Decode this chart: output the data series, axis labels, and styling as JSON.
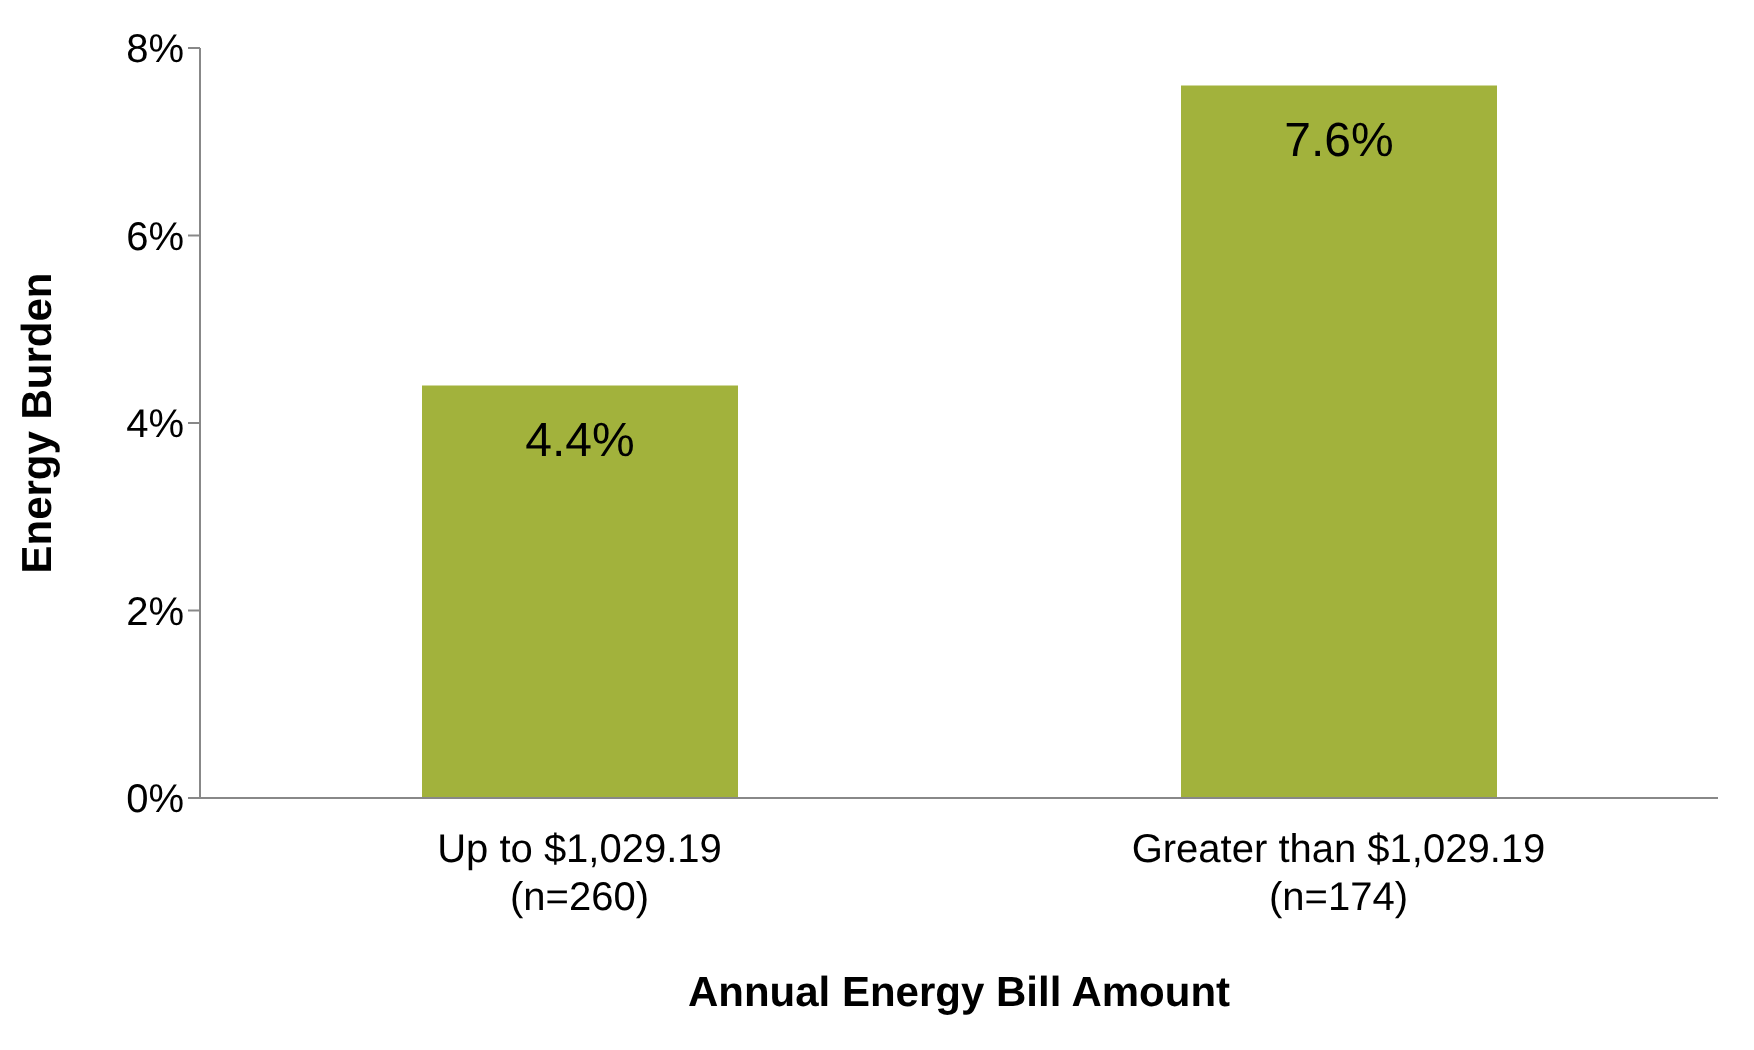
{
  "chart_data": {
    "type": "bar",
    "xlabel": "Annual Energy Bill Amount",
    "ylabel": "Energy Burden",
    "categories": [
      "Up to $1,029.19\n(n=260)",
      "Greater than $1,029.19\n(n=174)"
    ],
    "values": [
      4.4,
      7.6
    ],
    "value_labels": [
      "4.4%",
      "7.6%"
    ],
    "color": "#a2b23c",
    "ylim": [
      0,
      8
    ],
    "yticks": [
      {
        "value": 0,
        "label": "0%"
      },
      {
        "value": 2,
        "label": "2%"
      },
      {
        "value": 4,
        "label": "4%"
      },
      {
        "value": 6,
        "label": "6%"
      },
      {
        "value": 8,
        "label": "8%"
      }
    ],
    "grid": false,
    "legend": false
  }
}
